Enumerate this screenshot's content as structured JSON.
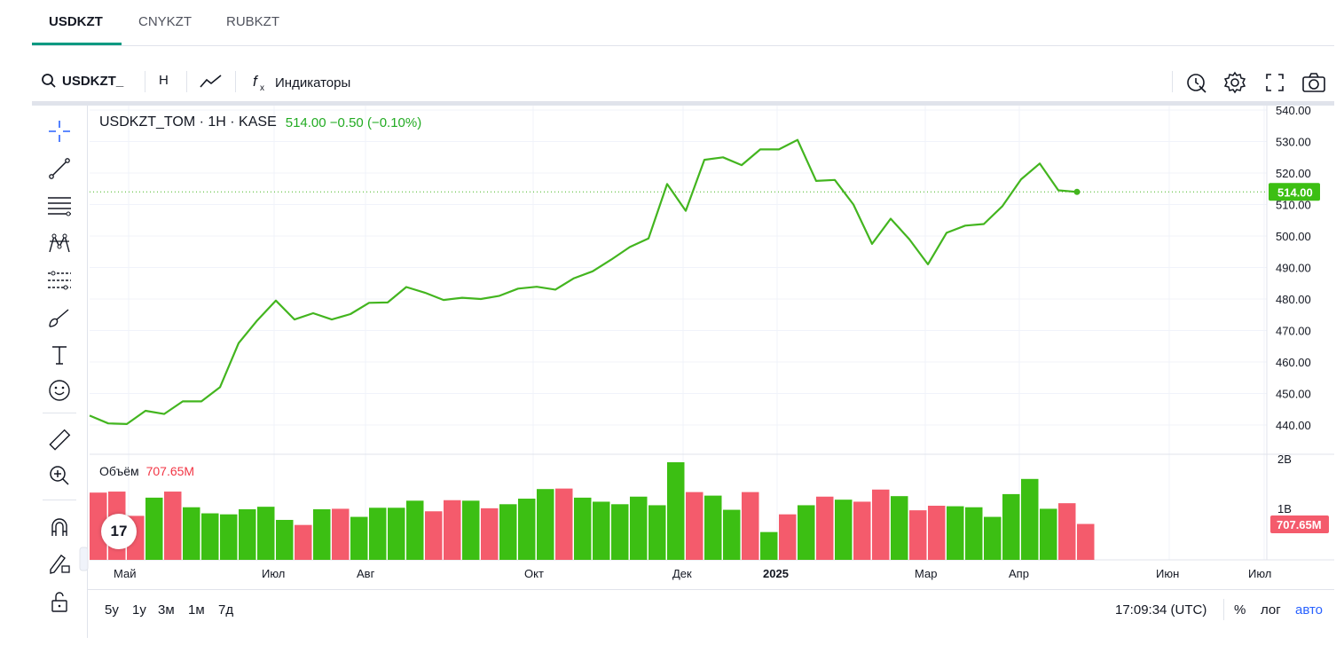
{
  "tabs": [
    {
      "label": "USDKZT",
      "active": true
    },
    {
      "label": "CNYKZT",
      "active": false
    },
    {
      "label": "RUBKZT",
      "active": false
    }
  ],
  "toolbar": {
    "symbol": "USDKZT_",
    "interval": "Н",
    "indicators_label": "Индикаторы"
  },
  "legend": {
    "title": "USDKZT_TOM · 1Н · KASE",
    "last": "514.00",
    "change": "−0.50",
    "change_pct": "(−0.10%)"
  },
  "volume_legend": {
    "label": "Объём",
    "value": "707.65M"
  },
  "price_label": "514.00",
  "volume_label": "707.65M",
  "logo_text": "17",
  "bottom": {
    "ranges": [
      "5у",
      "1у",
      "3м",
      "1м",
      "7д"
    ],
    "time": "17:09:34 (UTC)",
    "percent": "%",
    "log": "лог",
    "auto": "авто"
  },
  "colors": {
    "line": "#43b51f",
    "up": "#3cbf13",
    "down": "#f45b6c",
    "accent_tab": "#089981",
    "auto": "#2962ff"
  },
  "chart_data": {
    "type": "line",
    "title": "USDKZT_TOM · 1Н · KASE",
    "x_ticks": [
      "Май",
      "Июл",
      "Авг",
      "Окт",
      "Дек",
      "2025",
      "Мар",
      "Апр",
      "Июн",
      "Июл"
    ],
    "y_ticks": [
      "540.00",
      "530.00",
      "520.00",
      "510.00",
      "500.00",
      "490.00",
      "480.00",
      "470.00",
      "460.00",
      "450.00",
      "440.00"
    ],
    "ylim": [
      437,
      541
    ],
    "price_series": [
      443,
      440.5,
      440.3,
      444.5,
      443.5,
      447.5,
      447.5,
      452,
      466,
      473.2,
      479.5,
      473.5,
      475.5,
      473.5,
      475.2,
      478.8,
      478.9,
      483.8,
      482,
      479.7,
      480.4,
      480,
      481,
      483.3,
      483.9,
      483,
      486.6,
      488.8,
      492.5,
      496.5,
      499.2,
      516.5,
      508,
      524.2,
      525,
      522.5,
      527.5,
      527.5,
      530.5,
      517.5,
      517.8,
      510,
      497.5,
      505.5,
      499,
      491,
      501,
      503.3,
      503.8,
      509.5,
      518,
      523,
      514.5,
      514
    ],
    "volume_axis_ticks": [
      "2B",
      "1B"
    ],
    "volume_ylim": [
      0,
      2.0
    ],
    "volumes": [
      {
        "v": 1.33,
        "up": false
      },
      {
        "v": 1.35,
        "up": false
      },
      {
        "v": 0.87,
        "up": false
      },
      {
        "v": 1.23,
        "up": true
      },
      {
        "v": 1.35,
        "up": false
      },
      {
        "v": 1.04,
        "up": true
      },
      {
        "v": 0.92,
        "up": true
      },
      {
        "v": 0.9,
        "up": true
      },
      {
        "v": 1.0,
        "up": true
      },
      {
        "v": 1.05,
        "up": true
      },
      {
        "v": 0.79,
        "up": true
      },
      {
        "v": 0.69,
        "up": false
      },
      {
        "v": 1.0,
        "up": true
      },
      {
        "v": 1.01,
        "up": false
      },
      {
        "v": 0.85,
        "up": true
      },
      {
        "v": 1.03,
        "up": true
      },
      {
        "v": 1.03,
        "up": true
      },
      {
        "v": 1.17,
        "up": true
      },
      {
        "v": 0.96,
        "up": false
      },
      {
        "v": 1.18,
        "up": false
      },
      {
        "v": 1.17,
        "up": true
      },
      {
        "v": 1.02,
        "up": false
      },
      {
        "v": 1.1,
        "up": true
      },
      {
        "v": 1.21,
        "up": true
      },
      {
        "v": 1.4,
        "up": true
      },
      {
        "v": 1.41,
        "up": false
      },
      {
        "v": 1.23,
        "up": true
      },
      {
        "v": 1.15,
        "up": true
      },
      {
        "v": 1.1,
        "up": true
      },
      {
        "v": 1.25,
        "up": true
      },
      {
        "v": 1.08,
        "up": true
      },
      {
        "v": 1.93,
        "up": true
      },
      {
        "v": 1.34,
        "up": false
      },
      {
        "v": 1.27,
        "up": true
      },
      {
        "v": 0.99,
        "up": true
      },
      {
        "v": 1.34,
        "up": false
      },
      {
        "v": 0.55,
        "up": true
      },
      {
        "v": 0.9,
        "up": false
      },
      {
        "v": 1.08,
        "up": true
      },
      {
        "v": 1.25,
        "up": false
      },
      {
        "v": 1.19,
        "up": true
      },
      {
        "v": 1.15,
        "up": false
      },
      {
        "v": 1.39,
        "up": false
      },
      {
        "v": 1.26,
        "up": true
      },
      {
        "v": 0.98,
        "up": false
      },
      {
        "v": 1.07,
        "up": false
      },
      {
        "v": 1.06,
        "up": true
      },
      {
        "v": 1.04,
        "up": true
      },
      {
        "v": 0.85,
        "up": true
      },
      {
        "v": 1.3,
        "up": true
      },
      {
        "v": 1.6,
        "up": true
      },
      {
        "v": 1.01,
        "up": true
      },
      {
        "v": 1.12,
        "up": false
      },
      {
        "v": 0.71,
        "up": false
      }
    ]
  }
}
